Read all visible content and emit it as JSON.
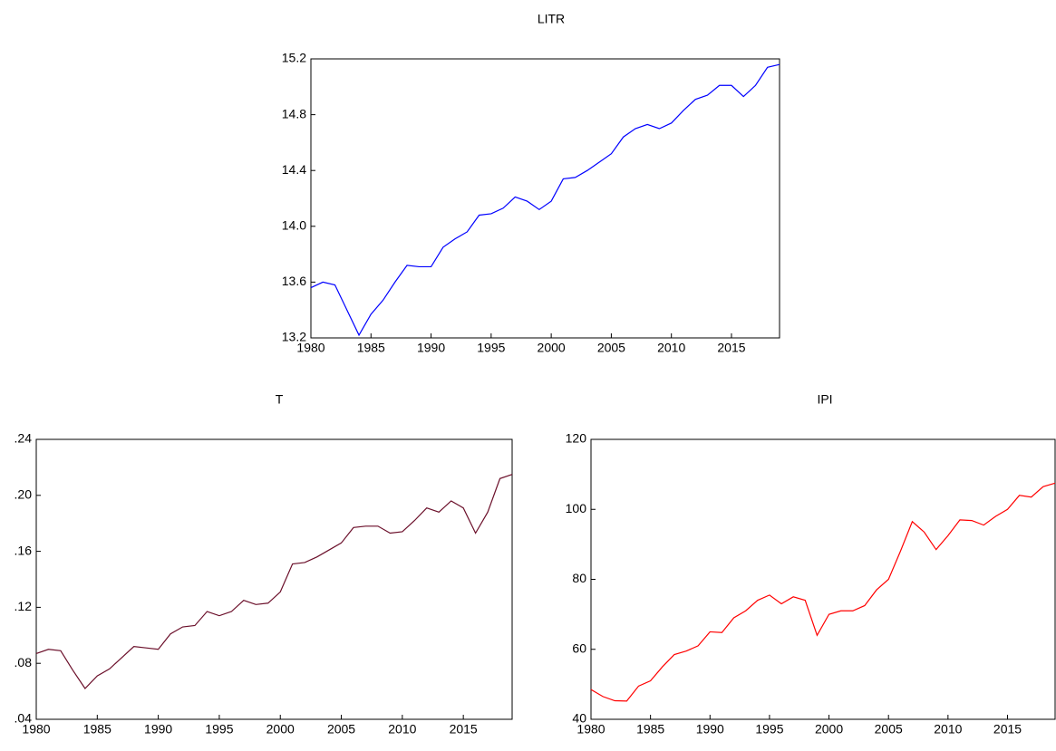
{
  "chart_data": [
    {
      "type": "line",
      "title": "LITR",
      "x": [
        1980,
        1981,
        1982,
        1983,
        1984,
        1985,
        1986,
        1987,
        1988,
        1989,
        1990,
        1991,
        1992,
        1993,
        1994,
        1995,
        1996,
        1997,
        1998,
        1999,
        2000,
        2001,
        2002,
        2003,
        2004,
        2005,
        2006,
        2007,
        2008,
        2009,
        2010,
        2011,
        2012,
        2013,
        2014,
        2015,
        2016,
        2017,
        2018,
        2019
      ],
      "series": [
        {
          "name": "LITR",
          "color": "#0000ff",
          "values": [
            13.56,
            13.6,
            13.58,
            13.4,
            13.22,
            13.37,
            13.47,
            13.6,
            13.72,
            13.71,
            13.71,
            13.85,
            13.91,
            13.96,
            14.08,
            14.09,
            14.13,
            14.21,
            14.18,
            14.12,
            14.18,
            14.34,
            14.35,
            14.4,
            14.46,
            14.52,
            14.64,
            14.7,
            14.73,
            14.7,
            14.74,
            14.83,
            14.91,
            14.94,
            15.01,
            15.01,
            14.93,
            15.01,
            15.14,
            15.16
          ]
        }
      ],
      "xlim": [
        1980,
        2019
      ],
      "xticks": [
        1980,
        1985,
        1990,
        1995,
        2000,
        2005,
        2010,
        2015
      ],
      "ylim": [
        13.2,
        15.2
      ],
      "yticks": [
        13.2,
        13.6,
        {
          "value": 14.0,
          "label": "14.0"
        },
        14.4,
        14.8,
        15.2
      ]
    },
    {
      "type": "line",
      "title": "T",
      "x": [
        1980,
        1981,
        1982,
        1983,
        1984,
        1985,
        1986,
        1987,
        1988,
        1989,
        1990,
        1991,
        1992,
        1993,
        1994,
        1995,
        1996,
        1997,
        1998,
        1999,
        2000,
        2001,
        2002,
        2003,
        2004,
        2005,
        2006,
        2007,
        2008,
        2009,
        2010,
        2011,
        2012,
        2013,
        2014,
        2015,
        2016,
        2017,
        2018,
        2019
      ],
      "series": [
        {
          "name": "T",
          "color": "#6b0f2a",
          "values": [
            0.087,
            0.09,
            0.089,
            0.075,
            0.062,
            0.071,
            0.076,
            0.084,
            0.092,
            0.091,
            0.09,
            0.101,
            0.106,
            0.107,
            0.117,
            0.114,
            0.117,
            0.125,
            0.122,
            0.123,
            0.131,
            0.151,
            0.152,
            0.156,
            0.161,
            0.166,
            0.177,
            0.178,
            0.178,
            0.173,
            0.174,
            0.182,
            0.191,
            0.188,
            0.196,
            0.191,
            0.173,
            0.188,
            0.212,
            0.215
          ]
        }
      ],
      "xlim": [
        1980,
        2019
      ],
      "xticks": [
        1980,
        1985,
        1990,
        1995,
        2000,
        2005,
        2010,
        2015
      ],
      "ylim": [
        0.04,
        0.24
      ],
      "yticks": [
        {
          "value": 0.04,
          "label": ".04"
        },
        {
          "value": 0.08,
          "label": ".08"
        },
        {
          "value": 0.12,
          "label": ".12"
        },
        {
          "value": 0.16,
          "label": ".16"
        },
        {
          "value": 0.2,
          "label": ".20"
        },
        {
          "value": 0.24,
          "label": ".24"
        }
      ]
    },
    {
      "type": "line",
      "title": "IPI",
      "x": [
        1980,
        1981,
        1982,
        1983,
        1984,
        1985,
        1986,
        1987,
        1988,
        1989,
        1990,
        1991,
        1992,
        1993,
        1994,
        1995,
        1996,
        1997,
        1998,
        1999,
        2000,
        2001,
        2002,
        2003,
        2004,
        2005,
        2006,
        2007,
        2008,
        2009,
        2010,
        2011,
        2012,
        2013,
        2014,
        2015,
        2016,
        2017,
        2018,
        2019
      ],
      "series": [
        {
          "name": "IPI",
          "color": "#ff0000",
          "values": [
            48.5,
            46.5,
            45.3,
            45.2,
            49.5,
            51,
            55,
            58.5,
            59.5,
            61,
            65,
            64.8,
            69,
            71,
            74,
            75.5,
            73,
            75,
            74,
            64,
            70,
            71,
            71,
            72.5,
            77,
            80,
            88,
            96.5,
            93.5,
            88.5,
            92.5,
            97,
            96.8,
            95.5,
            98,
            100,
            104,
            103.5,
            106.5,
            107.5
          ]
        }
      ],
      "xlim": [
        1980,
        2019
      ],
      "xticks": [
        1980,
        1985,
        1990,
        1995,
        2000,
        2005,
        2010,
        2015
      ],
      "ylim": [
        40,
        120
      ],
      "yticks": [
        40,
        60,
        80,
        100,
        120
      ]
    }
  ]
}
